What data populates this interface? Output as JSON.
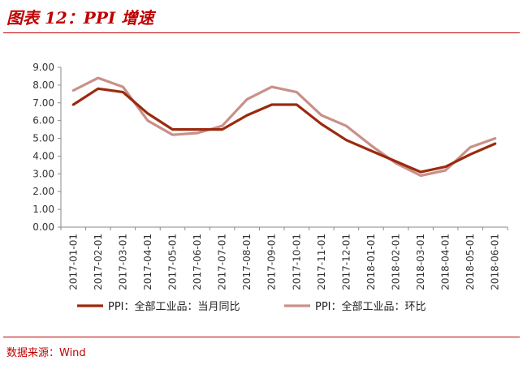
{
  "figure_title": "图表 12：PPI 增速",
  "source": "数据来源：Wind",
  "chart_data": {
    "type": "line",
    "title": "",
    "xlabel": "",
    "ylabel": "",
    "ylim": [
      0,
      9
    ],
    "yticks": [
      "0.00",
      "1.00",
      "2.00",
      "3.00",
      "4.00",
      "5.00",
      "6.00",
      "7.00",
      "8.00",
      "9.00"
    ],
    "grid": false,
    "legend_position": "bottom",
    "categories": [
      "2017-01-01",
      "2017-02-01",
      "2017-03-01",
      "2017-04-01",
      "2017-05-01",
      "2017-06-01",
      "2017-07-01",
      "2017-08-01",
      "2017-09-01",
      "2017-10-01",
      "2017-11-01",
      "2017-12-01",
      "2018-01-01",
      "2018-02-01",
      "2018-03-01",
      "2018-04-01",
      "2018-05-01",
      "2018-06-01"
    ],
    "series": [
      {
        "name": "PPI：全部工业品：当月同比",
        "color": "#9b2a0e",
        "values": [
          6.9,
          7.8,
          7.6,
          6.4,
          5.5,
          5.5,
          5.5,
          6.3,
          6.9,
          6.9,
          5.8,
          4.9,
          4.3,
          3.7,
          3.1,
          3.4,
          4.1,
          4.7
        ]
      },
      {
        "name": "PPI：全部工业品：环比",
        "color": "#c99089",
        "values": [
          7.7,
          8.4,
          7.9,
          6.0,
          5.2,
          5.3,
          5.7,
          7.2,
          7.9,
          7.6,
          6.3,
          5.7,
          4.6,
          3.6,
          2.9,
          3.2,
          4.5,
          5.0
        ]
      }
    ]
  }
}
